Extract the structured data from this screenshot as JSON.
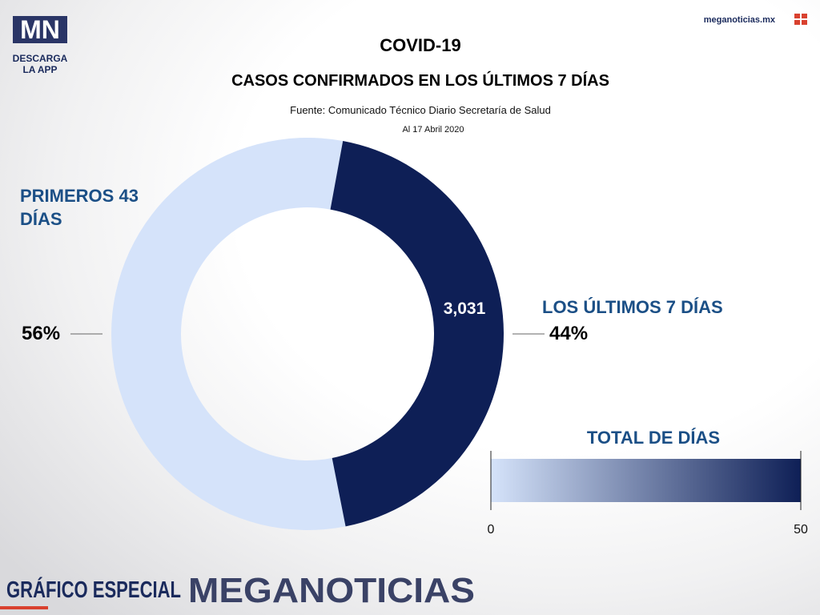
{
  "branding": {
    "logo": "MN",
    "app": "DESCARGA LA APP",
    "site": "meganoticias.mx",
    "footer_left": "GRÁFICO ESPECIAL",
    "footer_right": "MEGANOTICIAS"
  },
  "chart_data": {
    "type": "donut",
    "title": "COVID-19",
    "subtitle": "CASOS CONFIRMADOS EN LOS ÚLTIMOS 7 DÍAS",
    "source": "Fuente: Comunicado Técnico Diario Secretaría de Salud",
    "date": "Al 17 Abril 2020",
    "categories": [
      "PRIMEROS 43 DÍAS",
      "LOS ÚLTIMOS 7 DÍAS"
    ],
    "values": [
      56,
      44
    ],
    "value_labels": [
      "56%",
      "44%"
    ],
    "colors": [
      "#d5e3fa",
      "#0e1f56"
    ],
    "annotation": "3,031",
    "colorbar": {
      "title": "TOTAL DE DÍAS",
      "lim": [
        0,
        50
      ],
      "ticks": [
        0,
        50
      ],
      "colors": [
        "#d5e3fa",
        "#0e1f56"
      ]
    }
  }
}
